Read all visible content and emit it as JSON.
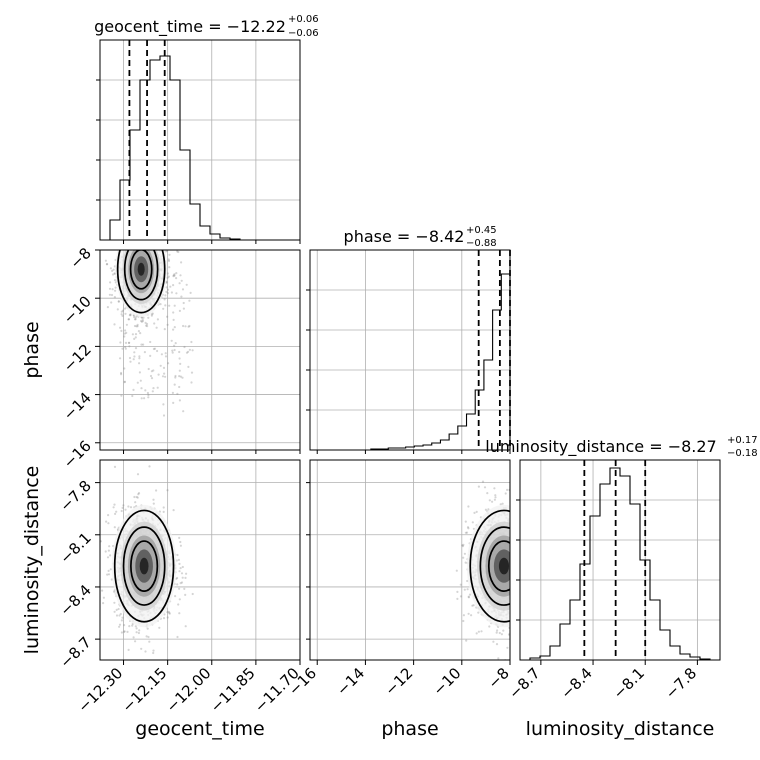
{
  "chart_data": {
    "type": "corner",
    "parameters": [
      {
        "name": "geocent_time",
        "xlabel": "geocent_time",
        "ylabel": "",
        "title": {
          "text": "geocent_time = −12.22",
          "plus": "+0.06",
          "minus": "−0.06"
        },
        "range": [
          -12.38,
          -11.7
        ],
        "ticks": [
          -12.3,
          -12.15,
          -12.0,
          -11.85,
          -11.7
        ],
        "tick_labels": [
          "−12.30",
          "−12.15",
          "−12.00",
          "−11.85",
          "−11.70"
        ],
        "quantiles": [
          -12.28,
          -12.22,
          -12.16
        ],
        "histogram": [
          0.0,
          0.1,
          0.3,
          0.55,
          0.8,
          0.9,
          0.92,
          0.8,
          0.45,
          0.18,
          0.07,
          0.03,
          0.01,
          0.005,
          0.0,
          0.0,
          0.0,
          0.0,
          0.0,
          0.0
        ]
      },
      {
        "name": "phase",
        "xlabel": "phase",
        "ylabel": "phase",
        "title": {
          "text": "phase = −8.42",
          "plus": "+0.45",
          "minus": "−0.88"
        },
        "range": [
          -16.3,
          -8.0
        ],
        "ticks": [
          -16,
          -14,
          -12,
          -10,
          -8
        ],
        "tick_labels": [
          "−16",
          "−14",
          "−12",
          "−10",
          "−8"
        ],
        "quantiles": [
          -9.3,
          -8.42,
          -7.97
        ],
        "histogram": [
          0.0,
          0.0,
          0.0,
          0.0,
          0.0,
          0.0,
          0.0,
          0.005,
          0.005,
          0.01,
          0.01,
          0.015,
          0.02,
          0.025,
          0.035,
          0.05,
          0.08,
          0.12,
          0.18,
          0.3,
          0.45,
          0.7,
          0.88
        ]
      },
      {
        "name": "luminosity_distance",
        "xlabel": "luminosity_distance",
        "ylabel": "luminosity_distance",
        "title": {
          "text": "luminosity_distance = −8.27",
          "plus": "+0.17",
          "minus": "−0.18"
        },
        "range": [
          -8.82,
          -7.67
        ],
        "ticks": [
          -8.7,
          -8.4,
          -8.1,
          -7.8
        ],
        "tick_labels": [
          "−8.7",
          "−8.4",
          "−8.1",
          "−7.8"
        ],
        "quantiles": [
          -8.45,
          -8.27,
          -8.1
        ],
        "histogram": [
          0.0,
          0.01,
          0.02,
          0.07,
          0.18,
          0.3,
          0.48,
          0.72,
          0.88,
          0.96,
          0.92,
          0.78,
          0.5,
          0.3,
          0.15,
          0.07,
          0.03,
          0.015,
          0.005,
          0.0
        ]
      }
    ],
    "pairs": [
      {
        "x": "geocent_time",
        "y": "phase",
        "mean": [
          -12.24,
          -8.8
        ],
        "sd": [
          0.04,
          0.9
        ],
        "tail": true
      },
      {
        "x": "geocent_time",
        "y": "luminosity_distance",
        "mean": [
          -12.23,
          -8.28
        ],
        "sd": [
          0.05,
          0.16
        ],
        "tail": false
      },
      {
        "x": "phase",
        "y": "luminosity_distance",
        "mean": [
          -8.25,
          -8.28
        ],
        "sd": [
          0.7,
          0.16
        ],
        "tail": false
      }
    ],
    "grid": true
  }
}
